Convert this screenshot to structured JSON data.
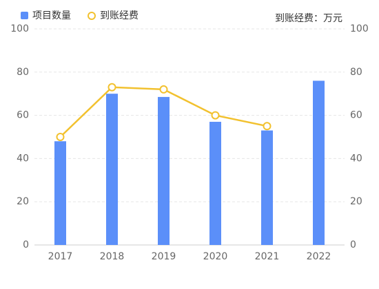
{
  "chart_data": {
    "type": "bar",
    "categories": [
      "2017",
      "2018",
      "2019",
      "2020",
      "2021",
      "2022"
    ],
    "series": [
      {
        "name": "项目数量",
        "type": "bar",
        "color": "#5b8ff9",
        "values": [
          48,
          70,
          68.5,
          57,
          53,
          76
        ]
      },
      {
        "name": "到账经费",
        "type": "line",
        "axis": "y2",
        "color": "#f2c12e",
        "values": [
          50,
          73,
          72,
          60,
          55,
          null
        ]
      }
    ],
    "y2_label": "到账经费：万元",
    "ylim": [
      0,
      100
    ],
    "yticks": [
      0,
      20,
      40,
      60,
      80,
      100
    ],
    "y2lim": [
      0,
      100
    ],
    "y2ticks": [
      0,
      20,
      40,
      60,
      80,
      100
    ],
    "grid": true,
    "legend": "top-left"
  }
}
